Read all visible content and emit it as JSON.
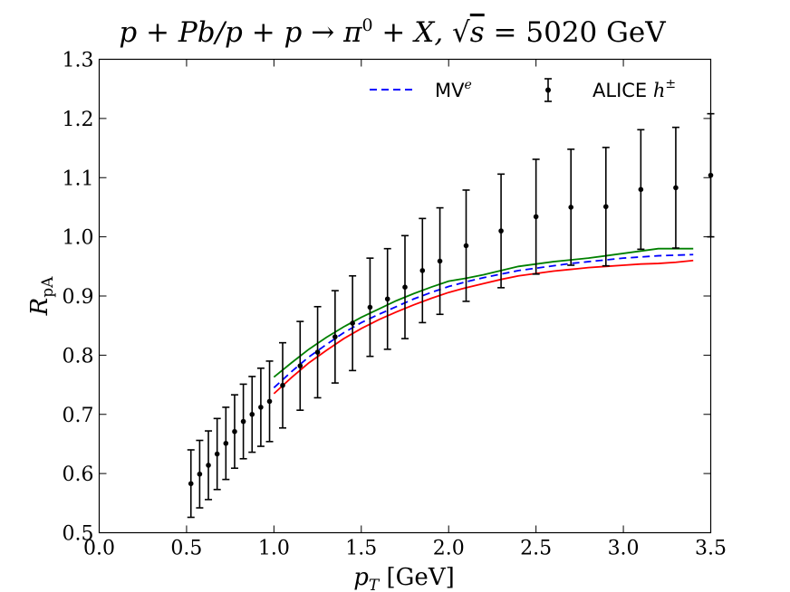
{
  "chart_data": {
    "type": "line",
    "title": "p + Pb/p + p → π⁰ + X, √s = 5020 GeV",
    "xlabel": "p_T [GeV]",
    "ylabel": "R_pA",
    "xlim": [
      0.0,
      3.5
    ],
    "ylim": [
      0.5,
      1.3
    ],
    "xticks": [
      0.0,
      0.5,
      1.0,
      1.5,
      2.0,
      2.5,
      3.0,
      3.5
    ],
    "yticks": [
      0.5,
      0.6,
      0.7,
      0.8,
      0.9,
      1.0,
      1.1,
      1.2,
      1.3
    ],
    "xtick_labels": [
      "0.0",
      "0.5",
      "1.0",
      "1.5",
      "2.0",
      "2.5",
      "3.0",
      "3.5"
    ],
    "ytick_labels": [
      "0.5",
      "0.6",
      "0.7",
      "0.8",
      "0.9",
      "1.0",
      "1.1",
      "1.2",
      "1.3"
    ],
    "legend_position": "top-right",
    "grid": false,
    "series": [
      {
        "name": "MV^e",
        "style": "dashed",
        "color": "#0000ff",
        "in_legend": true,
        "x": [
          1.0,
          1.1,
          1.2,
          1.3,
          1.4,
          1.5,
          1.6,
          1.7,
          1.8,
          1.9,
          2.0,
          2.1,
          2.2,
          2.3,
          2.4,
          2.5,
          2.6,
          2.7,
          2.8,
          2.9,
          3.0,
          3.1,
          3.2,
          3.3,
          3.4
        ],
        "y": [
          0.745,
          0.772,
          0.797,
          0.818,
          0.838,
          0.855,
          0.869,
          0.882,
          0.895,
          0.906,
          0.916,
          0.924,
          0.931,
          0.937,
          0.943,
          0.947,
          0.951,
          0.955,
          0.958,
          0.961,
          0.964,
          0.966,
          0.968,
          0.969,
          0.97
        ]
      },
      {
        "name": "upper band",
        "style": "solid",
        "color": "#008000",
        "in_legend": false,
        "x": [
          1.0,
          1.1,
          1.2,
          1.3,
          1.4,
          1.5,
          1.6,
          1.7,
          1.8,
          1.9,
          2.0,
          2.1,
          2.2,
          2.3,
          2.4,
          2.5,
          2.6,
          2.7,
          2.8,
          2.9,
          3.0,
          3.1,
          3.2,
          3.3,
          3.4
        ],
        "y": [
          0.763,
          0.787,
          0.81,
          0.83,
          0.848,
          0.864,
          0.878,
          0.892,
          0.904,
          0.915,
          0.925,
          0.93,
          0.936,
          0.943,
          0.95,
          0.954,
          0.958,
          0.961,
          0.964,
          0.968,
          0.972,
          0.976,
          0.98,
          0.98,
          0.98
        ]
      },
      {
        "name": "lower band",
        "style": "solid",
        "color": "#ff0000",
        "in_legend": false,
        "x": [
          1.0,
          1.1,
          1.2,
          1.3,
          1.4,
          1.5,
          1.6,
          1.7,
          1.8,
          1.9,
          2.0,
          2.1,
          2.2,
          2.3,
          2.4,
          2.5,
          2.6,
          2.7,
          2.8,
          2.9,
          3.0,
          3.1,
          3.2,
          3.3,
          3.4
        ],
        "y": [
          0.735,
          0.762,
          0.787,
          0.808,
          0.828,
          0.845,
          0.86,
          0.873,
          0.885,
          0.896,
          0.906,
          0.914,
          0.921,
          0.928,
          0.934,
          0.938,
          0.942,
          0.945,
          0.948,
          0.95,
          0.952,
          0.954,
          0.955,
          0.957,
          0.96
        ]
      },
      {
        "name": "ALICE h^±",
        "style": "errorbar",
        "color": "#000000",
        "in_legend": true,
        "x": [
          0.525,
          0.575,
          0.625,
          0.675,
          0.725,
          0.775,
          0.825,
          0.875,
          0.925,
          0.975,
          1.05,
          1.15,
          1.25,
          1.35,
          1.45,
          1.55,
          1.65,
          1.75,
          1.85,
          1.95,
          2.1,
          2.3,
          2.5,
          2.7,
          2.9,
          3.1,
          3.3,
          3.5
        ],
        "y": [
          0.583,
          0.599,
          0.614,
          0.633,
          0.651,
          0.671,
          0.688,
          0.7,
          0.712,
          0.722,
          0.749,
          0.782,
          0.805,
          0.831,
          0.854,
          0.881,
          0.895,
          0.915,
          0.943,
          0.959,
          0.985,
          1.01,
          1.034,
          1.05,
          1.051,
          1.08,
          1.083,
          1.104
        ],
        "yerr": [
          0.057,
          0.057,
          0.058,
          0.06,
          0.061,
          0.062,
          0.063,
          0.064,
          0.066,
          0.068,
          0.072,
          0.075,
          0.077,
          0.078,
          0.08,
          0.083,
          0.085,
          0.087,
          0.088,
          0.09,
          0.094,
          0.096,
          0.097,
          0.098,
          0.1,
          0.101,
          0.102,
          0.104
        ]
      }
    ]
  },
  "title_parts": {
    "main": "p + Pb/p + p → π",
    "sup": "0",
    "mid": " + X, √",
    "sqrt_arg": "s",
    "tail": " = 5020 GeV"
  },
  "axis_parts": {
    "xlabel_main": "p",
    "xlabel_sub": "T",
    "xlabel_tail": " [GeV]",
    "ylabel_main": "R",
    "ylabel_sub": "pA"
  },
  "legend": {
    "mv_text": "MV",
    "mv_sup": "e",
    "alice_text": "ALICE ",
    "alice_h": "h",
    "alice_sup": "±"
  }
}
